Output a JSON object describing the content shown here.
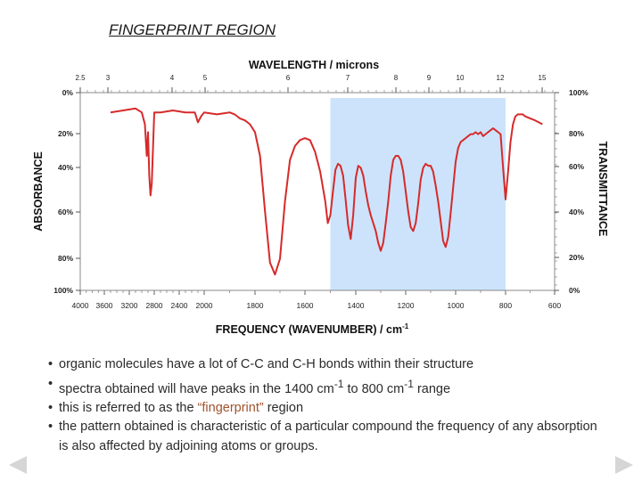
{
  "slide": {
    "title": "FINGERPRINT REGION"
  },
  "chart_data": {
    "type": "line",
    "title": "",
    "top_axis_label": "WAVELENGTH / microns",
    "top_ticks": [
      "2.5",
      "3",
      "4",
      "5",
      "6",
      "7",
      "8",
      "9",
      "10",
      "12",
      "15"
    ],
    "xlabel": "FREQUENCY (WAVENUMBER) / cm",
    "xlabel_sup": "-1",
    "xlim": [
      4000,
      600
    ],
    "x_ticks": [
      "4000",
      "3600",
      "3200",
      "2800",
      "2400",
      "2000",
      "1800",
      "1600",
      "1400",
      "1200",
      "1000",
      "800",
      "600"
    ],
    "ylabel_left": "ABSORBANCE",
    "ylabel_right": "TRANSMITTANCE",
    "left_ticks": [
      "0%",
      "20%",
      "40%",
      "60%",
      "80%",
      "100%"
    ],
    "right_ticks": [
      "100%",
      "80%",
      "60%",
      "40%",
      "20%",
      "0%"
    ],
    "highlight_region": [
      1500,
      800
    ],
    "series": [
      {
        "color": "#d62a2a",
        "x": [
          3500,
          3300,
          3100,
          3000,
          2950,
          2920,
          2900,
          2880,
          2860,
          2840,
          2820,
          2800,
          2700,
          2500,
          2300,
          2150,
          2100,
          2050,
          2000,
          1950,
          1900,
          1880,
          1860,
          1840,
          1820,
          1800,
          1780,
          1760,
          1740,
          1720,
          1700,
          1680,
          1660,
          1640,
          1620,
          1600,
          1580,
          1560,
          1540,
          1520,
          1510,
          1500,
          1490,
          1480,
          1470,
          1460,
          1450,
          1440,
          1430,
          1420,
          1410,
          1400,
          1390,
          1380,
          1370,
          1360,
          1350,
          1340,
          1330,
          1320,
          1310,
          1300,
          1290,
          1280,
          1270,
          1260,
          1250,
          1240,
          1230,
          1220,
          1210,
          1200,
          1190,
          1180,
          1170,
          1160,
          1150,
          1140,
          1130,
          1120,
          1110,
          1100,
          1090,
          1080,
          1070,
          1060,
          1050,
          1040,
          1030,
          1020,
          1010,
          1000,
          990,
          980,
          970,
          960,
          950,
          940,
          930,
          920,
          910,
          900,
          890,
          880,
          870,
          860,
          850,
          840,
          830,
          820,
          810,
          800,
          790,
          780,
          770,
          760,
          750,
          740,
          730,
          720,
          700,
          680,
          650
        ],
        "y": [
          90,
          91,
          92,
          90,
          84,
          68,
          80,
          58,
          48,
          54,
          72,
          90,
          90,
          91,
          90,
          90,
          85,
          88,
          90,
          89,
          90,
          89,
          87,
          86,
          84,
          80,
          68,
          40,
          14,
          8,
          16,
          45,
          66,
          73,
          76,
          77,
          76,
          70,
          60,
          45,
          34,
          38,
          50,
          61,
          64,
          63,
          58,
          46,
          33,
          26,
          38,
          57,
          63,
          62,
          58,
          50,
          43,
          38,
          34,
          30,
          24,
          20,
          24,
          34,
          45,
          58,
          66,
          68,
          68,
          66,
          60,
          50,
          40,
          32,
          30,
          34,
          44,
          56,
          62,
          64,
          63,
          63,
          60,
          53,
          45,
          35,
          25,
          22,
          27,
          39,
          52,
          65,
          72,
          75,
          76,
          77,
          78,
          79,
          79,
          80,
          79,
          80,
          78,
          79,
          80,
          81,
          82,
          81,
          80,
          79,
          62,
          46,
          60,
          75,
          84,
          88,
          89,
          89,
          89,
          88,
          87,
          86,
          84
        ]
      }
    ]
  },
  "bullets": [
    {
      "text": "organic molecules have a lot of C-C and C-H bonds within their structure"
    },
    {
      "pre": "spectra obtained will have peaks in the 1400 cm",
      "sup1": "-1",
      "mid": " to 800 cm",
      "sup2": "-1",
      "post": " range"
    },
    {
      "pre": "this is referred to as the ",
      "highlight": "“fingerprint”",
      "post": " region"
    },
    {
      "text": "the pattern obtained is characteristic of a particular compound the frequency of any absorption is also affected by adjoining atoms or groups."
    }
  ],
  "nav": {
    "prev_icon": "triangle-left",
    "next_icon": "triangle-right",
    "color": "#d6d6d6"
  }
}
